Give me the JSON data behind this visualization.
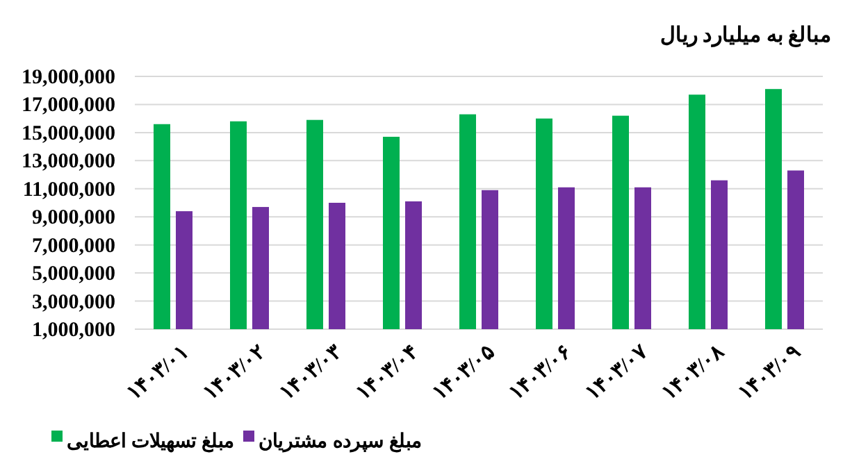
{
  "chart_data": {
    "type": "bar",
    "title": "مبالغ به میلیارد ریال",
    "categories": [
      "۱۴۰۳/۰۱",
      "۱۴۰۳/۰۲",
      "۱۴۰۳/۰۳",
      "۱۴۰۳/۰۴",
      "۱۴۰۳/۰۵",
      "۱۴۰۳/۰۶",
      "۱۴۰۳/۰۷",
      "۱۴۰۳/۰۸",
      "۱۴۰۳/۰۹"
    ],
    "series": [
      {
        "name": "مبلغ تسهیلات اعطایی",
        "color": "#00b050",
        "values": [
          15600000,
          15800000,
          15900000,
          14700000,
          16300000,
          16000000,
          16200000,
          17700000,
          18100000
        ]
      },
      {
        "name": "مبلغ سپرده مشتریان",
        "color": "#7030a0",
        "values": [
          9400000,
          9700000,
          10000000,
          10100000,
          10900000,
          11100000,
          11100000,
          11600000,
          12300000
        ]
      }
    ],
    "ylim": [
      1000000,
      19000000
    ],
    "yticks": [
      {
        "value": 1000000,
        "label": "1,000,000"
      },
      {
        "value": 3000000,
        "label": "3,000,000"
      },
      {
        "value": 5000000,
        "label": "5,000,000"
      },
      {
        "value": 7000000,
        "label": "7,000,000"
      },
      {
        "value": 9000000,
        "label": "9,000,000"
      },
      {
        "value": 11000000,
        "label": "11,000,000"
      },
      {
        "value": 13000000,
        "label": "13,000,000"
      },
      {
        "value": 15000000,
        "label": "15,000,000"
      },
      {
        "value": 17000000,
        "label": "17,000,000"
      },
      {
        "value": 19000000,
        "label": "19,000,000"
      }
    ],
    "grid": "y",
    "legend": "bottom"
  }
}
